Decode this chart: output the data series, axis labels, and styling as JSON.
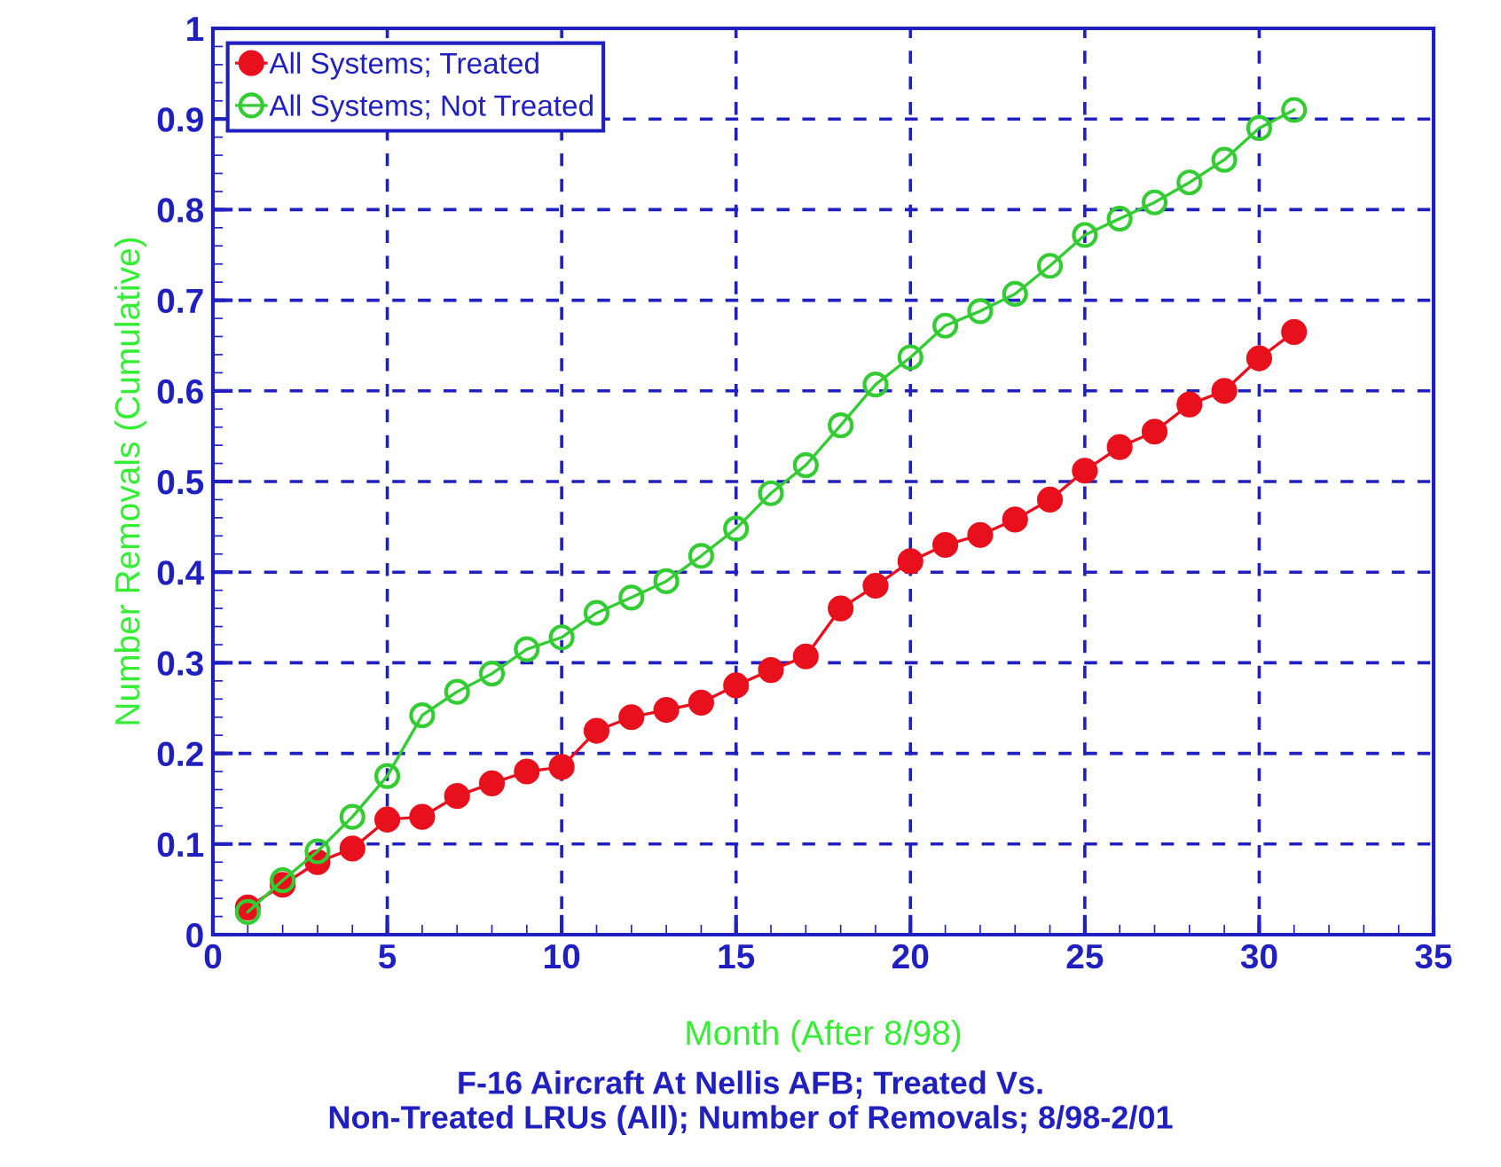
{
  "chart_data": {
    "type": "line",
    "xlabel": "Month (After 8/98)",
    "ylabel": "Number Removals (Cumulative)",
    "annotations": [
      "F-16 Aircraft At Nellis AFB; Treated Vs.\nNon-Treated LRUs (All); Number of Removals; 8/98-2/01"
    ],
    "x": [
      1,
      2,
      3,
      4,
      5,
      6,
      7,
      8,
      9,
      10,
      11,
      12,
      13,
      14,
      15,
      16,
      17,
      18,
      19,
      20,
      21,
      22,
      23,
      24,
      25,
      26,
      27,
      28,
      29,
      30,
      31
    ],
    "series": [
      {
        "name": "All Systems; Treated",
        "color": "#e8101c",
        "marker": "circle",
        "values": [
          0.03,
          0.055,
          0.08,
          0.095,
          0.127,
          0.13,
          0.153,
          0.167,
          0.18,
          0.185,
          0.225,
          0.24,
          0.248,
          0.256,
          0.275,
          0.292,
          0.307,
          0.36,
          0.385,
          0.412,
          0.43,
          0.441,
          0.458,
          0.48,
          0.512,
          0.538,
          0.555,
          0.585,
          0.6,
          0.636,
          0.665
        ]
      },
      {
        "name": "All Systems; Not Treated",
        "color": "#33cc33",
        "marker": "circle",
        "values": [
          0.025,
          0.06,
          0.092,
          0.13,
          0.175,
          0.242,
          0.268,
          0.288,
          0.315,
          0.328,
          0.355,
          0.372,
          0.39,
          0.418,
          0.448,
          0.487,
          0.518,
          0.562,
          0.607,
          0.637,
          0.672,
          0.688,
          0.707,
          0.738,
          0.772,
          0.79,
          0.808,
          0.83,
          0.855,
          0.89,
          0.91
        ]
      }
    ],
    "xlim": [
      0,
      35
    ],
    "xticks": [
      0,
      5,
      10,
      15,
      20,
      25,
      30,
      35
    ],
    "ylim": [
      0,
      1
    ],
    "yticks": [
      0,
      0.1,
      0.2,
      0.3,
      0.4,
      0.5,
      0.6,
      0.7,
      0.8,
      0.9,
      1
    ],
    "grid": true,
    "legend": "top left",
    "line_style": "solid"
  }
}
